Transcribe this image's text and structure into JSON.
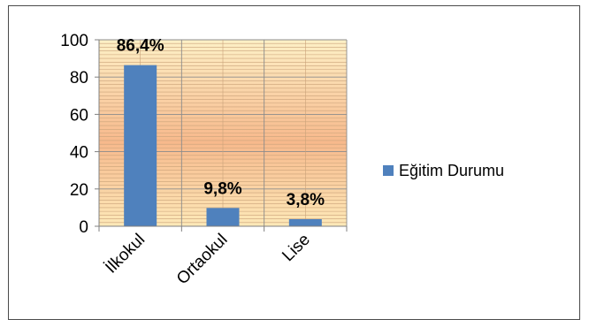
{
  "chart_data": {
    "type": "bar",
    "categories": [
      "İlkokul",
      "Ortaokul",
      "Lise"
    ],
    "series": [
      {
        "name": "Eğitim Durumu",
        "values": [
          86.4,
          9.8,
          3.8
        ],
        "color": "#4f81bd"
      }
    ],
    "data_labels": [
      "86,4%",
      "9,8%",
      "3,8%"
    ],
    "ylim": [
      0,
      100
    ],
    "yticks": [
      0,
      20,
      40,
      60,
      80,
      100
    ],
    "grid": true,
    "legend_position": "right",
    "plot_background": "gradient-yellow-orange"
  }
}
